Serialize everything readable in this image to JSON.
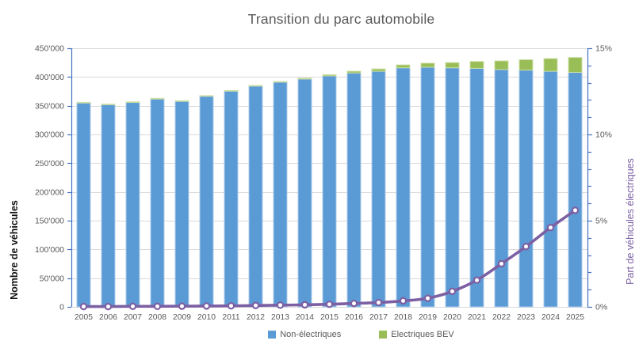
{
  "chart_data": {
    "type": "bar",
    "combo": "stacked-bars-with-line",
    "title": "Transition du parc automobile",
    "categories": [
      "2005",
      "2006",
      "2007",
      "2008",
      "2009",
      "2010",
      "2011",
      "2012",
      "2013",
      "2014",
      "2015",
      "2016",
      "2017",
      "2018",
      "2019",
      "2020",
      "2021",
      "2022",
      "2023",
      "2024",
      "2025"
    ],
    "series": [
      {
        "name": "Non-électriques",
        "type": "bar",
        "stack": "vehicles",
        "axis": "left",
        "color": "#5B9BD5",
        "border_color": "#AECBEC",
        "values": [
          354800,
          351800,
          355700,
          361700,
          357600,
          366500,
          375400,
          384200,
          391000,
          396500,
          402000,
          407000,
          410000,
          416000,
          417000,
          416000,
          415000,
          413000,
          412000,
          410000,
          408000
        ]
      },
      {
        "name": "Electriques BEV",
        "type": "bar",
        "stack": "vehicles",
        "axis": "left",
        "color": "#99BD57",
        "border_color": "#CDDFA4",
        "values": [
          200,
          200,
          300,
          300,
          400,
          500,
          600,
          800,
          1000,
          1500,
          2000,
          3000,
          4000,
          5000,
          7000,
          9000,
          12000,
          15000,
          18000,
          22000,
          26000
        ]
      },
      {
        "name": "Part de véhicules électriques",
        "type": "line",
        "axis": "right",
        "color": "#7C60A3",
        "marker": "white-circle-purple-ring",
        "values_percent": [
          0.02,
          0.02,
          0.03,
          0.03,
          0.04,
          0.05,
          0.06,
          0.08,
          0.1,
          0.12,
          0.15,
          0.2,
          0.25,
          0.35,
          0.5,
          0.9,
          1.55,
          2.5,
          3.5,
          4.6,
          5.6
        ]
      }
    ],
    "left_axis": {
      "label": "Nombre de véhicules",
      "min": 0,
      "max": 450000,
      "tick_step": 50000,
      "tick_labels": [
        "0",
        "50'000",
        "100'000",
        "150'000",
        "200'000",
        "250'000",
        "300'000",
        "350'000",
        "400'000",
        "450'000"
      ]
    },
    "right_axis": {
      "label": "Part de véhicules électriques",
      "min": 0,
      "max": 15,
      "major_tick_values": [
        0,
        5,
        10,
        15
      ],
      "major_tick_labels": [
        "0%",
        "5%",
        "10%",
        "15%"
      ],
      "minor_tick_step": 1
    },
    "legend": {
      "position": "bottom",
      "items": [
        "Non-électriques",
        "Electriques BEV"
      ]
    },
    "grid": "horizontal",
    "colors": {
      "axis_line": "#4472C4",
      "gridline": "#D9D9D9",
      "baseline": "#D9D9D9",
      "tick_text": "#595959",
      "title_text": "#595959",
      "left_label_text": "#111111",
      "right_label_text": "#7C60A3",
      "background": "#FFFFFF",
      "marker_fill": "#FFFFFF"
    }
  }
}
